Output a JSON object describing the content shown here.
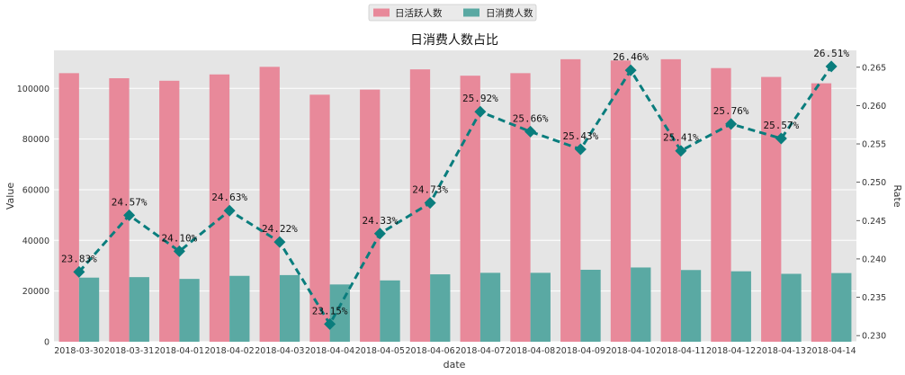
{
  "chart_data": {
    "type": "bar",
    "title": "日消费人数占比",
    "xlabel": "date",
    "ylabel": "Value",
    "y2label": "Rate",
    "categories": [
      "2018-03-30",
      "2018-03-31",
      "2018-04-01",
      "2018-04-02",
      "2018-04-03",
      "2018-04-04",
      "2018-04-05",
      "2018-04-06",
      "2018-04-07",
      "2018-04-08",
      "2018-04-09",
      "2018-04-10",
      "2018-04-11",
      "2018-04-12",
      "2018-04-13",
      "2018-04-14"
    ],
    "series": [
      {
        "name": "日活跃人数",
        "kind": "bar",
        "color": "#e8899a",
        "values": [
          106000,
          104000,
          103000,
          105500,
          108500,
          97500,
          99500,
          107500,
          105000,
          106000,
          111500,
          111000,
          111500,
          108000,
          104500,
          102000
        ]
      },
      {
        "name": "日消费人数",
        "kind": "bar",
        "color": "#5aa9a3",
        "values": [
          25300,
          25500,
          24800,
          26000,
          26300,
          22600,
          24200,
          26600,
          27200,
          27200,
          28400,
          29300,
          28300,
          27800,
          26800,
          27100
        ]
      },
      {
        "kind": "line",
        "axis": "right",
        "color": "#0a7d7d",
        "style": "dashed",
        "marker": "diamond",
        "values": [
          0.2383,
          0.2457,
          0.241,
          0.2463,
          0.2422,
          0.2315,
          0.2433,
          0.2473,
          0.2592,
          0.2566,
          0.2543,
          0.2646,
          0.2541,
          0.2576,
          0.2557,
          0.2651
        ],
        "labels": [
          "23.83%",
          "24.57%",
          "24.10%",
          "24.63%",
          "24.22%",
          "23.15%",
          "24.33%",
          "24.73%",
          "25.92%",
          "25.66%",
          "25.43%",
          "26.46%",
          "25.41%",
          "25.76%",
          "25.57%",
          "26.51%"
        ]
      }
    ],
    "ylim": [
      0,
      115000
    ],
    "yticks": [
      0,
      20000,
      40000,
      60000,
      80000,
      100000
    ],
    "ytick_labels": [
      "0",
      "20000",
      "40000",
      "60000",
      "80000",
      "100000"
    ],
    "y2lim": [
      0.2292,
      0.2672
    ],
    "y2ticks": [
      0.23,
      0.235,
      0.24,
      0.245,
      0.25,
      0.255,
      0.26,
      0.265
    ],
    "y2tick_labels": [
      "0.230",
      "0.235",
      "0.240",
      "0.245",
      "0.250",
      "0.255",
      "0.260",
      "0.265"
    ],
    "grid": true,
    "legend_position": "top-center",
    "background": "#e5e5e5"
  }
}
